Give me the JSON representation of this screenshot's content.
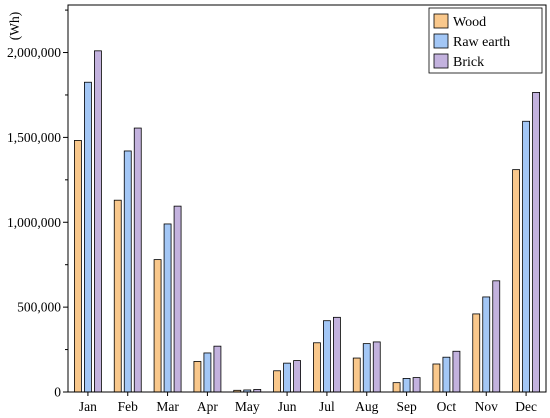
{
  "chart_data": {
    "type": "bar",
    "categories": [
      "Jan",
      "Feb",
      "Mar",
      "Apr",
      "May",
      "Jun",
      "Jul",
      "Aug",
      "Sep",
      "Oct",
      "Nov",
      "Dec"
    ],
    "series": [
      {
        "name": "Wood",
        "color": "#F9C88C",
        "values": [
          1482000,
          1130000,
          780000,
          180000,
          10000,
          125000,
          290000,
          200000,
          55000,
          165000,
          460000,
          1310000
        ]
      },
      {
        "name": "Raw earth",
        "color": "#A3C7F6",
        "values": [
          1825000,
          1420000,
          990000,
          230000,
          12000,
          170000,
          420000,
          285000,
          80000,
          205000,
          560000,
          1595000
        ]
      },
      {
        "name": "Brick",
        "color": "#C3B2DE",
        "values": [
          2010000,
          1555000,
          1095000,
          270000,
          15000,
          185000,
          440000,
          295000,
          85000,
          240000,
          655000,
          1765000
        ]
      }
    ],
    "ylabel": "(Wh)",
    "ylim": [
      0,
      2280000
    ],
    "yticks": [
      0,
      500000,
      1000000,
      1500000,
      2000000
    ],
    "ytick_labels": [
      "0",
      "500,000",
      "1,000,000",
      "1,500,000",
      "2,000,000"
    ],
    "legend_position": "top-right",
    "grid": false,
    "bar_outline_color": "#000000"
  }
}
